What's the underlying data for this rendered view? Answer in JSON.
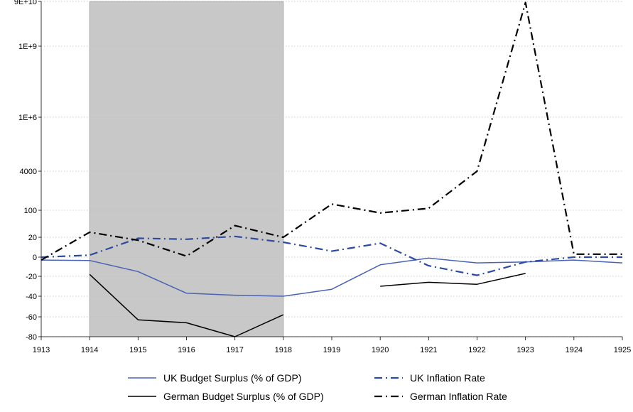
{
  "chart_data": {
    "type": "line",
    "title": "",
    "xlabel": "",
    "ylabel": "",
    "x": [
      1913,
      1914,
      1915,
      1916,
      1917,
      1918,
      1919,
      1920,
      1921,
      1922,
      1923,
      1924,
      1925
    ],
    "xlim": [
      1913,
      1925
    ],
    "shaded_region": {
      "from": 1914,
      "to": 1918,
      "color": "#c8c8c8"
    },
    "y_scale": "piecewise (linear below 20, logarithmic above)",
    "y_ticks": [
      {
        "value": -80,
        "label": "-80"
      },
      {
        "value": -60,
        "label": "-60"
      },
      {
        "value": -40,
        "label": "-40"
      },
      {
        "value": -20,
        "label": "-20"
      },
      {
        "value": 0,
        "label": "0"
      },
      {
        "value": 20,
        "label": "20"
      },
      {
        "value": 100,
        "label": "100"
      },
      {
        "value": 4000,
        "label": "4000"
      },
      {
        "value": 1000000,
        "label": "1E+6"
      },
      {
        "value": 1000000000,
        "label": "1E+9"
      },
      {
        "value": 90000000000,
        "label": "9E+10"
      }
    ],
    "grid": "horizontal dotted at each y tick",
    "legend_position": "bottom",
    "series": [
      {
        "name": "UK Budget Surplus (% of GDP)",
        "color": "#4a63b3",
        "dash": "solid",
        "values": [
          -3,
          -3.5,
          -15,
          -37,
          -39,
          -40,
          -33,
          -8,
          -1,
          -6,
          -5,
          -3,
          -6
        ]
      },
      {
        "name": "UK Inflation Rate",
        "color": "#2e4a9e",
        "dash": "dash-dot",
        "values": [
          0,
          2,
          19,
          18,
          21,
          15,
          6,
          14,
          -9,
          -19,
          -5,
          0,
          0
        ]
      },
      {
        "name": "German Budget Surplus (% of GDP)",
        "color": "#000000",
        "dash": "solid",
        "values": [
          null,
          -18,
          -63,
          -66,
          -80,
          -58,
          null,
          -30,
          -26,
          -28,
          -17,
          null,
          null
        ]
      },
      {
        "name": "German Inflation Rate",
        "color": "#000000",
        "dash": "dash-dot",
        "values": [
          -3,
          27,
          17,
          1,
          40,
          20,
          179,
          85,
          120,
          4000,
          80000000000,
          3,
          3
        ]
      }
    ]
  }
}
